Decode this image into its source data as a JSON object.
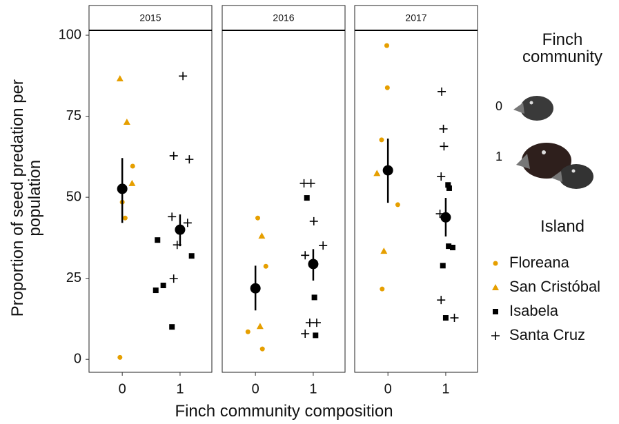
{
  "chart_data": {
    "type": "scatter",
    "x_label": "Finch community composition",
    "y_label": "Proportion of seed predation per population",
    "ylim": [
      -4,
      101.5
    ],
    "yticks": [
      0,
      25,
      50,
      75,
      100
    ],
    "xlim": [
      -0.575,
      1.55
    ],
    "xticks": [
      0,
      1
    ],
    "series": [
      {
        "name": "Floreana",
        "color": "#E69F00",
        "marker": "circle"
      },
      {
        "name": "San Cristóbal",
        "color": "#E69F00",
        "marker": "triangle"
      },
      {
        "name": "Isabela",
        "color": "#000000",
        "marker": "square"
      },
      {
        "name": "Santa Cruz",
        "color": "#000000",
        "marker": "plus"
      }
    ],
    "community_legend": {
      "title": "Finch community",
      "labels": [
        "0",
        "1"
      ]
    },
    "island_legend_title": "Island",
    "facets": [
      {
        "label": "2015",
        "points": [
          {
            "x": [
              0.0,
              0.05,
              0.18,
              -0.04
            ],
            "values": [
              48.5,
              43.6,
              59.6,
              0.6
            ]
          },
          {
            "x": [
              -0.04,
              0.08,
              0.17
            ],
            "values": [
              86.6,
              73.2,
              54.3
            ]
          },
          {
            "x": [
              0.86,
              0.58,
              0.71,
              0.61,
              1.2
            ],
            "values": [
              10,
              21.3,
              22.8,
              36.8,
              31.9
            ]
          },
          {
            "x": [
              1.05,
              0.89,
              1.16,
              0.86,
              1.13,
              0.95,
              0.89
            ],
            "values": [
              87.4,
              62.8,
              61.7,
              44,
              42.1,
              35.3,
              24.9
            ]
          }
        ],
        "means": {
          "x": [
            0,
            1
          ],
          "values": [
            52.6,
            40
          ],
          "lower": [
            42.1,
            34.9
          ],
          "upper": [
            62.1,
            44.7
          ]
        }
      },
      {
        "label": "2016",
        "points": [
          {
            "x": [
              0.04,
              0.18,
              -0.13,
              0.12
            ],
            "values": [
              43.6,
              28.7,
              8.5,
              3.2
            ]
          },
          {
            "x": [
              0.11,
              0.08
            ],
            "values": [
              38.1,
              10.2
            ]
          },
          {
            "x": [
              0.89,
              1.02,
              1.04
            ],
            "values": [
              49.8,
              19.1,
              7.4
            ]
          },
          {
            "x": [
              0.84,
              0.96,
              1.01,
              1.17,
              0.86,
              0.94,
              1.06,
              0.86
            ],
            "values": [
              54.3,
              54.3,
              42.6,
              35.1,
              32.1,
              11.3,
              11.3,
              7.9
            ]
          }
        ],
        "means": {
          "x": [
            0,
            1
          ],
          "values": [
            21.9,
            29.4
          ],
          "lower": [
            15.1,
            24.3
          ],
          "upper": [
            28.9,
            34
          ]
        }
      },
      {
        "label": "2017",
        "points": [
          {
            "x": [
              -0.02,
              -0.01,
              -0.11,
              0.17,
              -0.1
            ],
            "values": [
              96.8,
              83.8,
              67.7,
              47.7,
              21.7
            ]
          },
          {
            "x": [
              -0.19,
              -0.07
            ],
            "values": [
              57.4,
              33.4
            ]
          },
          {
            "x": [
              1.04,
              1.06,
              1.05,
              1.12,
              0.95,
              1.0
            ],
            "values": [
              53.8,
              52.8,
              34.9,
              34.5,
              28.9,
              12.8
            ]
          },
          {
            "x": [
              0.93,
              0.96,
              0.97,
              0.92,
              0.9,
              0.92,
              1.15
            ],
            "values": [
              82.6,
              71.1,
              65.7,
              56.4,
              44.9,
              18.3,
              12.8
            ]
          }
        ],
        "means": {
          "x": [
            0,
            1
          ],
          "values": [
            58.3,
            43.8
          ],
          "lower": [
            48.3,
            37.9
          ],
          "upper": [
            68.1,
            49.8
          ]
        }
      }
    ]
  }
}
